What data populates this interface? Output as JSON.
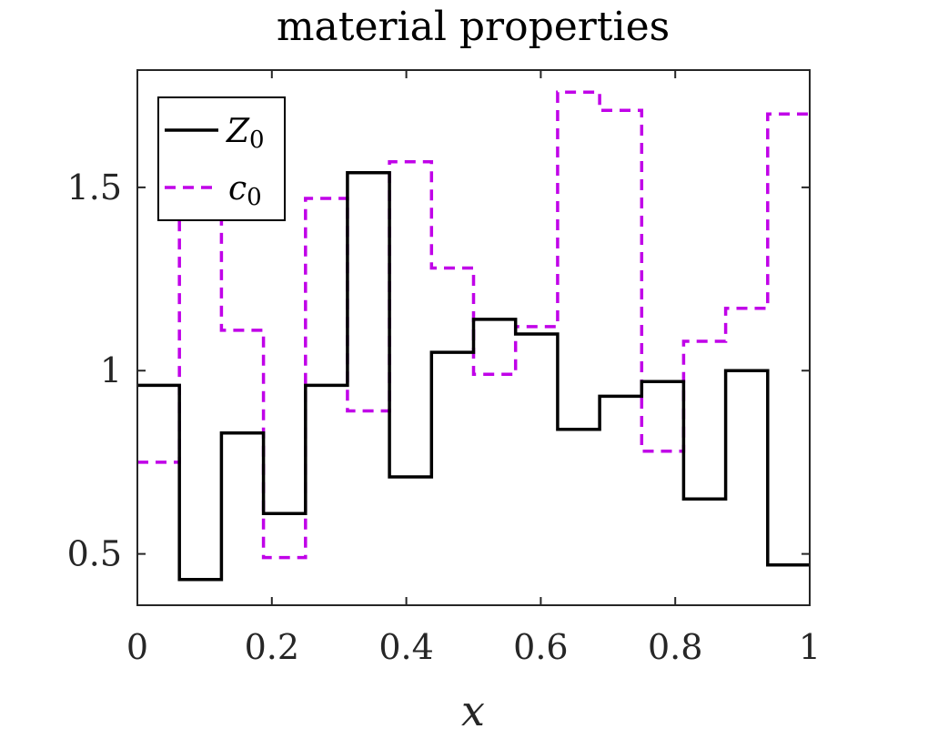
{
  "chart_data": {
    "type": "line",
    "title": "material properties",
    "xlabel": "x",
    "ylabel": "",
    "xlim": [
      0,
      1
    ],
    "ylim": [
      0.36,
      1.82
    ],
    "xticks": [
      0,
      0.2,
      0.4,
      0.6,
      0.8,
      1
    ],
    "xtick_labels": [
      "0",
      "0.2",
      "0.4",
      "0.6",
      "0.8",
      "1"
    ],
    "yticks": [
      0.5,
      1,
      1.5
    ],
    "ytick_labels": [
      "0.5",
      "1",
      "1.5"
    ],
    "legend_position": "top-left",
    "step_edges": [
      0,
      0.0625,
      0.125,
      0.1875,
      0.25,
      0.3125,
      0.375,
      0.4375,
      0.5,
      0.5625,
      0.625,
      0.6875,
      0.75,
      0.8125,
      0.875,
      0.9375,
      1
    ],
    "series": [
      {
        "name": "Z",
        "legend_symbol": "Z",
        "legend_subscript": "0",
        "style": "solid",
        "color": "#000000",
        "values": [
          0.96,
          0.43,
          0.83,
          0.61,
          0.96,
          1.54,
          0.71,
          1.05,
          1.14,
          1.1,
          0.84,
          0.93,
          0.97,
          0.65,
          1.0,
          0.47
        ]
      },
      {
        "name": "c",
        "legend_symbol": "c",
        "legend_subscript": "0",
        "style": "dashed",
        "color": "#c000e8",
        "values": [
          0.75,
          1.42,
          1.11,
          0.49,
          1.47,
          0.89,
          1.57,
          1.28,
          0.99,
          1.12,
          1.76,
          1.71,
          0.78,
          1.08,
          1.17,
          1.7
        ]
      }
    ]
  }
}
